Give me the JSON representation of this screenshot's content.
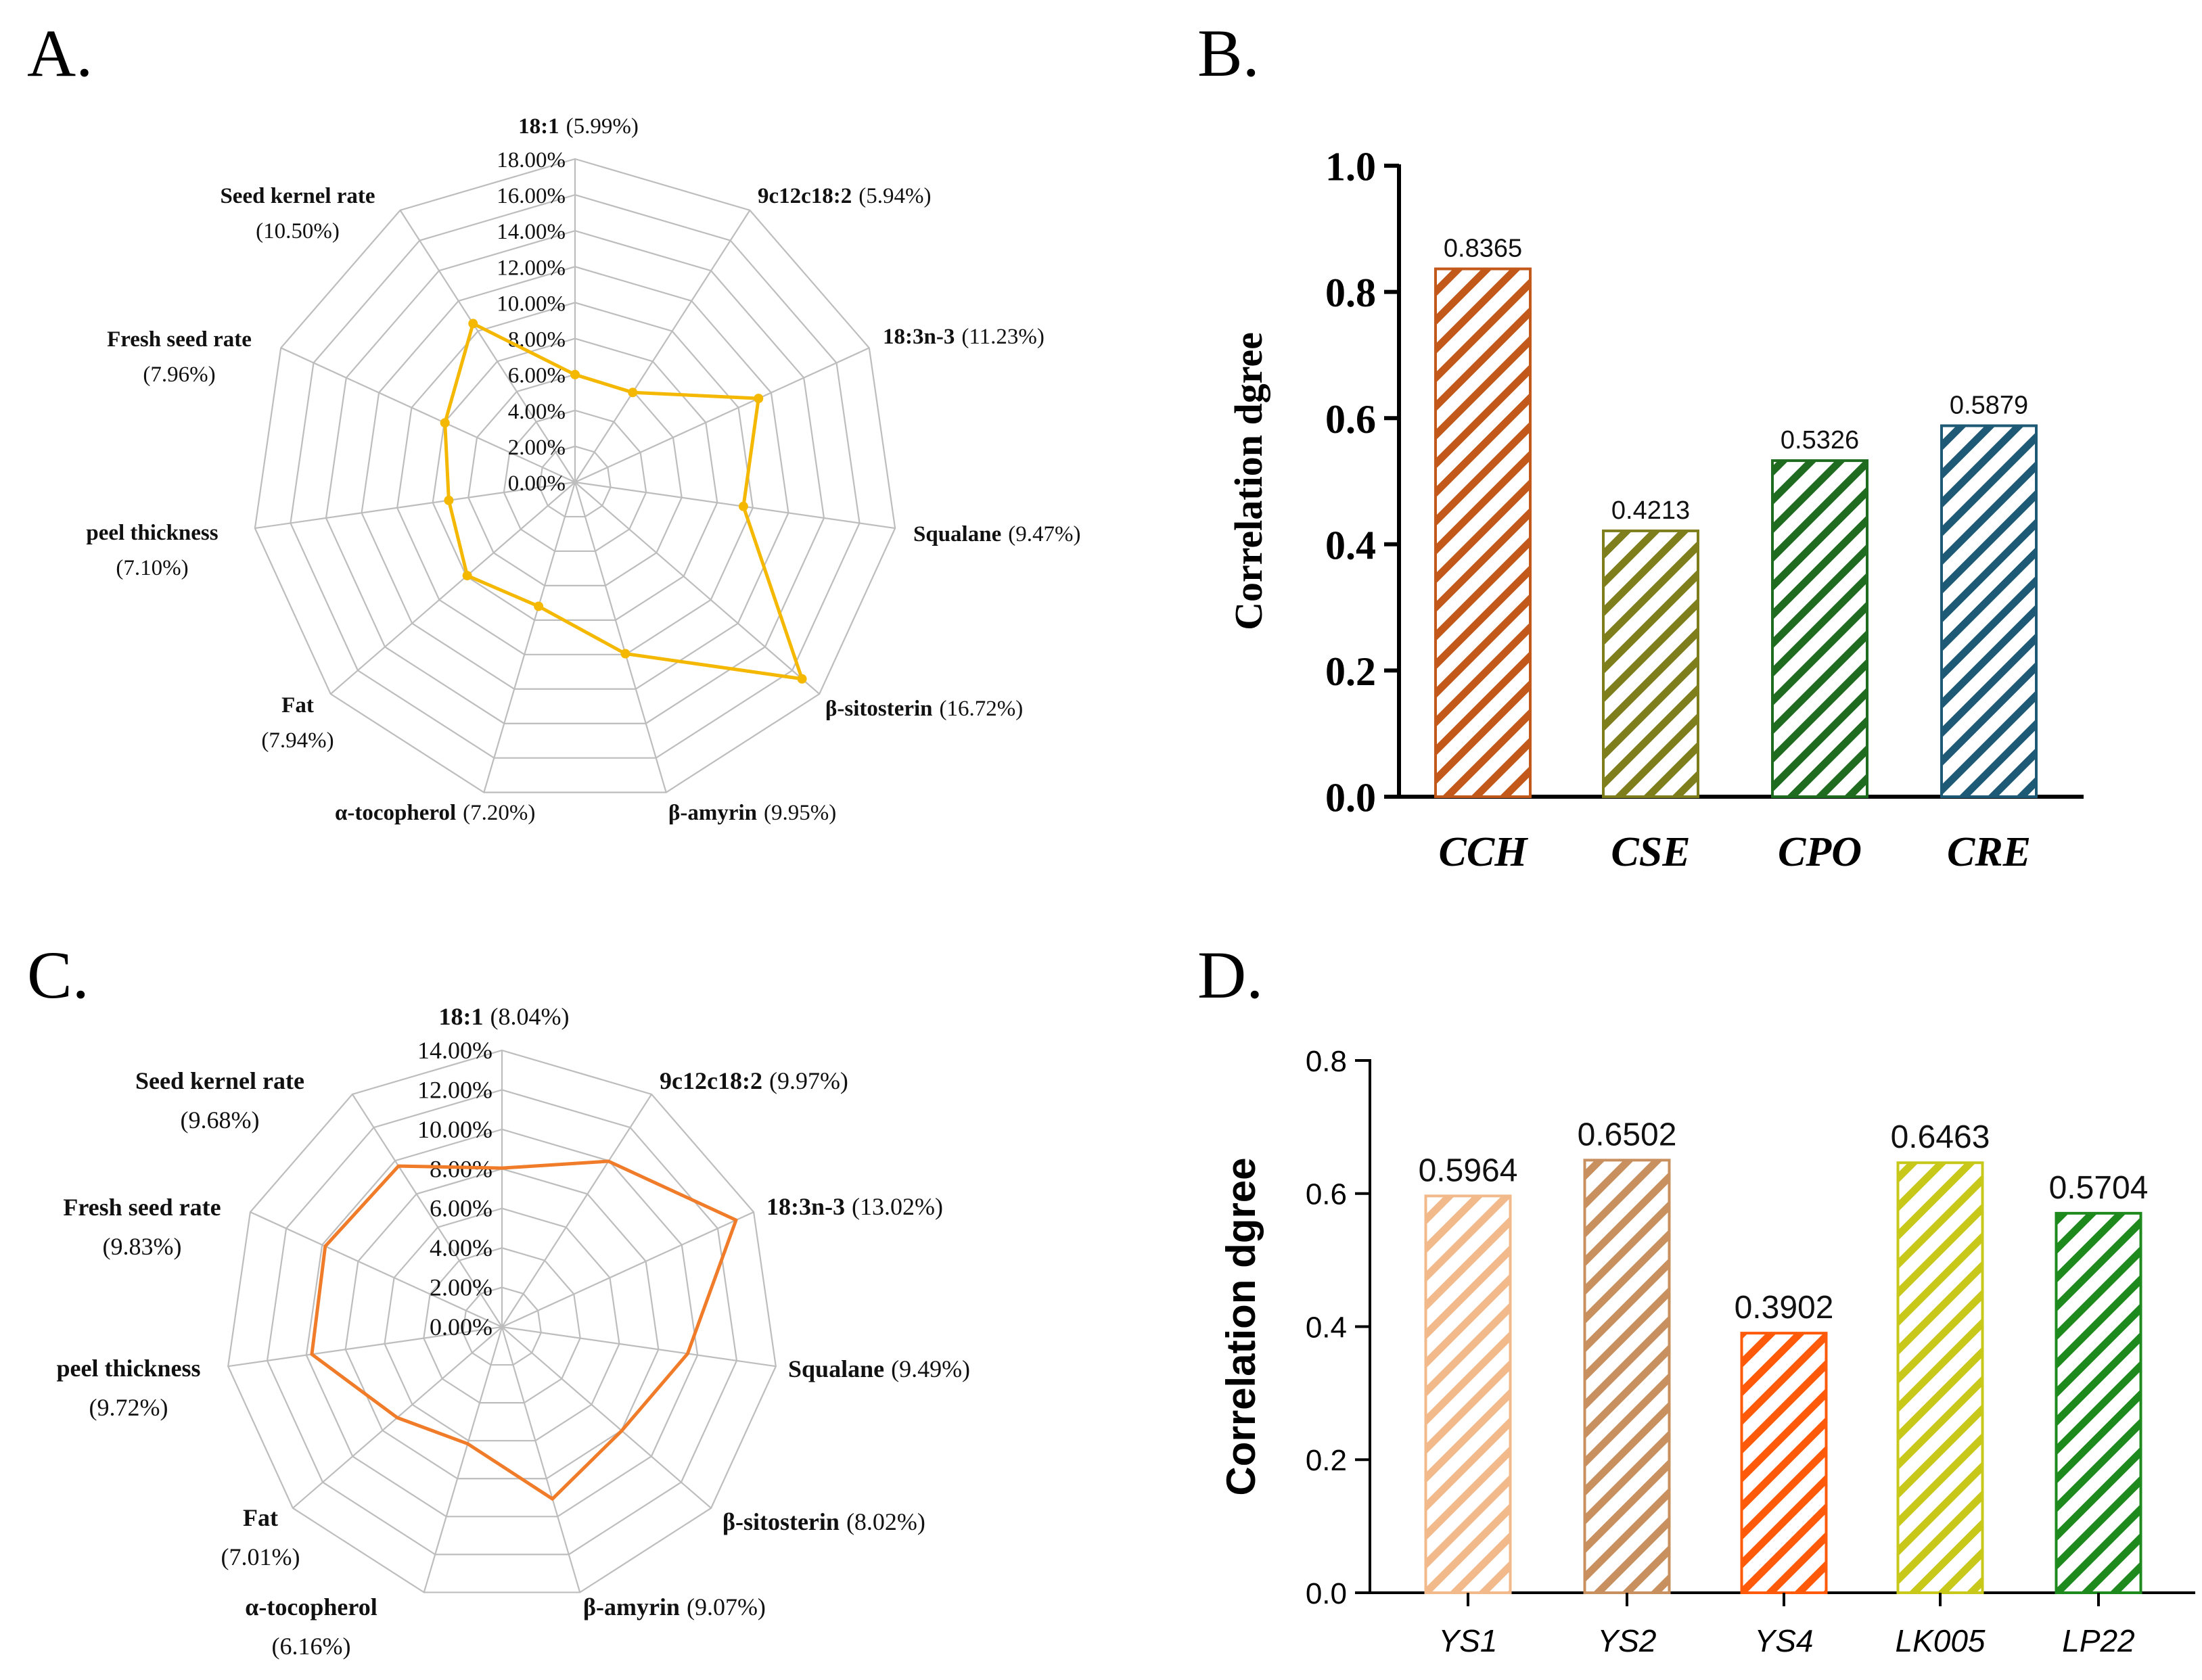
{
  "panels": {
    "A": {
      "letter": "A."
    },
    "B": {
      "letter": "B."
    },
    "C": {
      "letter": "C."
    },
    "D": {
      "letter": "D."
    }
  },
  "colors": {
    "radar_A": "#F5B800",
    "radar_C": "#F07C2A",
    "grid": "#bdbdbd",
    "CCH": "#C2581A",
    "CSE": "#7E7E1C",
    "CPO": "#1F6B1F",
    "CRE": "#1E5A75",
    "YS1": "#F2B98A",
    "YS2": "#C8905E",
    "YS4": "#FF5A0A",
    "LK005": "#C8C81A",
    "LP22": "#1E8A1E"
  },
  "chart_data": [
    {
      "panel": "A",
      "type": "radar",
      "rmax": 18,
      "ticks": [
        "0.00%",
        "2.00%",
        "4.00%",
        "6.00%",
        "8.00%",
        "10.00%",
        "12.00%",
        "14.00%",
        "16.00%",
        "18.00%"
      ],
      "axes": [
        {
          "label": "18:1",
          "pct": "(5.99%)",
          "value": 5.99
        },
        {
          "label": "9c12c18:2",
          "pct": "(5.94%)",
          "value": 5.94
        },
        {
          "label": "18:3n-3",
          "pct": "(11.23%)",
          "value": 11.23
        },
        {
          "label": "Squalane",
          "pct": "(9.47%)",
          "value": 9.47
        },
        {
          "label": "β-sitosterin",
          "pct": "(16.72%)",
          "value": 16.72
        },
        {
          "label": "β-amyrin",
          "pct": "(9.95%)",
          "value": 9.95
        },
        {
          "label": "α-tocopherol",
          "pct": "(7.20%)",
          "value": 7.2
        },
        {
          "label": "Fat",
          "pct": "(7.94%)",
          "value": 7.94
        },
        {
          "label": "peel thickness",
          "pct": "(7.10%)",
          "value": 7.1
        },
        {
          "label": "Fresh seed rate",
          "pct": "(7.96%)",
          "value": 7.96
        },
        {
          "label": "Seed kernel rate",
          "pct": "(10.50%)",
          "value": 10.5
        }
      ]
    },
    {
      "panel": "B",
      "type": "bar",
      "ylabel": "Correlation dgree",
      "ylim": [
        0,
        1.0
      ],
      "yticks": [
        "0.0",
        "0.2",
        "0.4",
        "0.6",
        "0.8",
        "1.0"
      ],
      "categories": [
        "CCH",
        "CSE",
        "CPO",
        "CRE"
      ],
      "values": [
        0.8365,
        0.4213,
        0.5326,
        0.5879
      ],
      "labels": [
        "0.8365",
        "0.4213",
        "0.5326",
        "0.5879"
      ]
    },
    {
      "panel": "C",
      "type": "radar",
      "rmax": 14,
      "ticks": [
        "0.00%",
        "2.00%",
        "4.00%",
        "6.00%",
        "8.00%",
        "10.00%",
        "12.00%",
        "14.00%"
      ],
      "axes": [
        {
          "label": "18:1",
          "pct": "(8.04%)",
          "value": 8.04
        },
        {
          "label": "9c12c18:2",
          "pct": "(9.97%)",
          "value": 9.97
        },
        {
          "label": "18:3n-3",
          "pct": "(13.02%)",
          "value": 13.02
        },
        {
          "label": "Squalane",
          "pct": "(9.49%)",
          "value": 9.49
        },
        {
          "label": "β-sitosterin",
          "pct": "(8.02%)",
          "value": 8.02
        },
        {
          "label": "β-amyrin",
          "pct": "(9.07%)",
          "value": 9.07
        },
        {
          "label": "α-tocopherol",
          "pct": "(6.16%)",
          "value": 6.16
        },
        {
          "label": "Fat",
          "pct": "(7.01%)",
          "value": 7.01
        },
        {
          "label": "peel thickness",
          "pct": "(9.72%)",
          "value": 9.72
        },
        {
          "label": "Fresh seed rate",
          "pct": "(9.83%)",
          "value": 9.83
        },
        {
          "label": "Seed kernel rate",
          "pct": "(9.68%)",
          "value": 9.68
        }
      ]
    },
    {
      "panel": "D",
      "type": "bar",
      "ylabel": "Correlation dgree",
      "ylim": [
        0,
        0.8
      ],
      "yticks": [
        "0.0",
        "0.2",
        "0.4",
        "0.6",
        "0.8"
      ],
      "categories": [
        "YS1",
        "YS2",
        "YS4",
        "LK005",
        "LP22"
      ],
      "values": [
        0.5964,
        0.6502,
        0.3902,
        0.6463,
        0.5704
      ],
      "labels": [
        "0.5964",
        "0.6502",
        "0.3902",
        "0.6463",
        "0.5704"
      ]
    }
  ]
}
